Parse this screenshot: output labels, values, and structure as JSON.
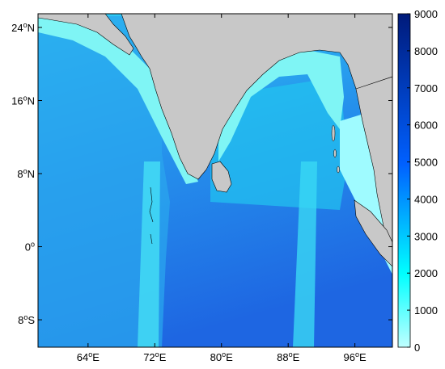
{
  "map": {
    "type": "bathymetry-heatmap",
    "extent": {
      "lon": [
        58.0,
        100.5
      ],
      "lat": [
        -11.0,
        25.5
      ]
    },
    "xaxis": {
      "ticks": [
        {
          "value": 64,
          "deg": "64",
          "hemi": "E"
        },
        {
          "value": 72,
          "deg": "72",
          "hemi": "E"
        },
        {
          "value": 80,
          "deg": "80",
          "hemi": "E"
        },
        {
          "value": 88,
          "deg": "88",
          "hemi": "E"
        },
        {
          "value": 96,
          "deg": "96",
          "hemi": "E"
        }
      ]
    },
    "yaxis": {
      "ticks": [
        {
          "value": 24,
          "deg": "24",
          "hemi": "N"
        },
        {
          "value": 16,
          "deg": "16",
          "hemi": "N"
        },
        {
          "value": 8,
          "deg": "8",
          "hemi": "N"
        },
        {
          "value": 0,
          "deg": "0",
          "hemi": ""
        },
        {
          "value": -8,
          "deg": "8",
          "hemi": "S"
        }
      ]
    },
    "colorbar": {
      "range": [
        0,
        9000
      ],
      "ticks": [
        "0",
        "1000",
        "2000",
        "3000",
        "4000",
        "5000",
        "6000",
        "7000",
        "8000",
        "9000"
      ],
      "colors": [
        "#c0ffff",
        "#00ffff",
        "#0060ff",
        "#001a7a"
      ]
    },
    "land_color": "#c8c8c8",
    "shallow_color": "#7ff5f5",
    "mid_color": "#1fb8f0",
    "deep_color": "#1c6ee6",
    "grid": false
  }
}
